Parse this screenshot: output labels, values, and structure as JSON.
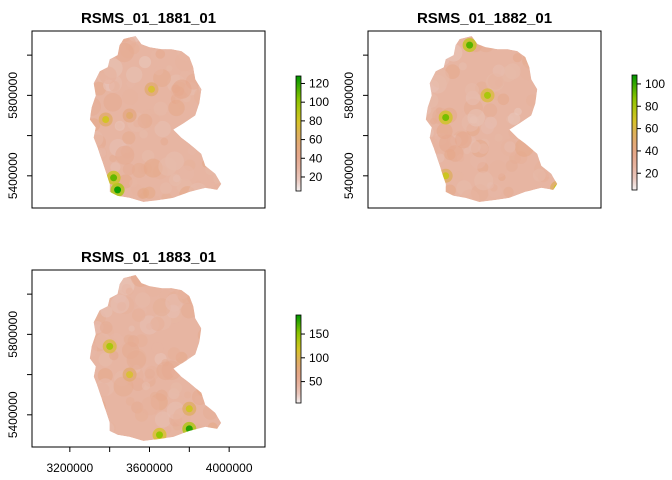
{
  "chart_data": [
    {
      "type": "heatmap",
      "title": "RSMS_01_1881_01",
      "y_ticks": [
        5400000,
        5800000
      ],
      "legend_ticks": [
        20,
        40,
        60,
        80,
        100,
        120
      ],
      "legend_range": [
        5,
        128
      ],
      "hotspots": [
        {
          "x": 3440000,
          "y": 5330000,
          "value": 125
        },
        {
          "x": 3420000,
          "y": 5390000,
          "value": 110
        },
        {
          "x": 3380000,
          "y": 5680000,
          "value": 80
        },
        {
          "x": 3610000,
          "y": 5830000,
          "value": 75
        },
        {
          "x": 3500000,
          "y": 5700000,
          "value": 60
        }
      ]
    },
    {
      "type": "heatmap",
      "title": "RSMS_01_1882_01",
      "y_ticks": [
        5400000,
        5800000
      ],
      "legend_ticks": [
        20,
        40,
        60,
        80,
        100
      ],
      "legend_range": [
        5,
        108
      ],
      "hotspots": [
        {
          "x": 3520000,
          "y": 6050000,
          "value": 95
        },
        {
          "x": 3400000,
          "y": 5690000,
          "value": 90
        },
        {
          "x": 3610000,
          "y": 5800000,
          "value": 80
        },
        {
          "x": 3400000,
          "y": 5400000,
          "value": 70
        },
        {
          "x": 3960000,
          "y": 5340000,
          "value": 70
        }
      ]
    },
    {
      "type": "heatmap",
      "title": "RSMS_01_1883_01",
      "x_ticks": [
        3200000,
        3600000,
        4000000
      ],
      "y_ticks": [
        5400000,
        5800000
      ],
      "legend_ticks": [
        50,
        100,
        150
      ],
      "legend_range": [
        5,
        190
      ],
      "hotspots": [
        {
          "x": 3400000,
          "y": 5740000,
          "value": 140
        },
        {
          "x": 3800000,
          "y": 5330000,
          "value": 180
        },
        {
          "x": 3650000,
          "y": 5300000,
          "value": 150
        },
        {
          "x": 3800000,
          "y": 5430000,
          "value": 120
        },
        {
          "x": 3500000,
          "y": 5600000,
          "value": 110
        }
      ]
    }
  ],
  "axis_extent": {
    "xmin": 3010000,
    "xmax": 4180000,
    "ymin": 5240000,
    "ymax": 6120000
  },
  "colors": {
    "low": "#f2f2f2",
    "mid": "#e6a56e",
    "high_mid": "#d4d400",
    "high": "#00a600",
    "outline": "#000000"
  }
}
